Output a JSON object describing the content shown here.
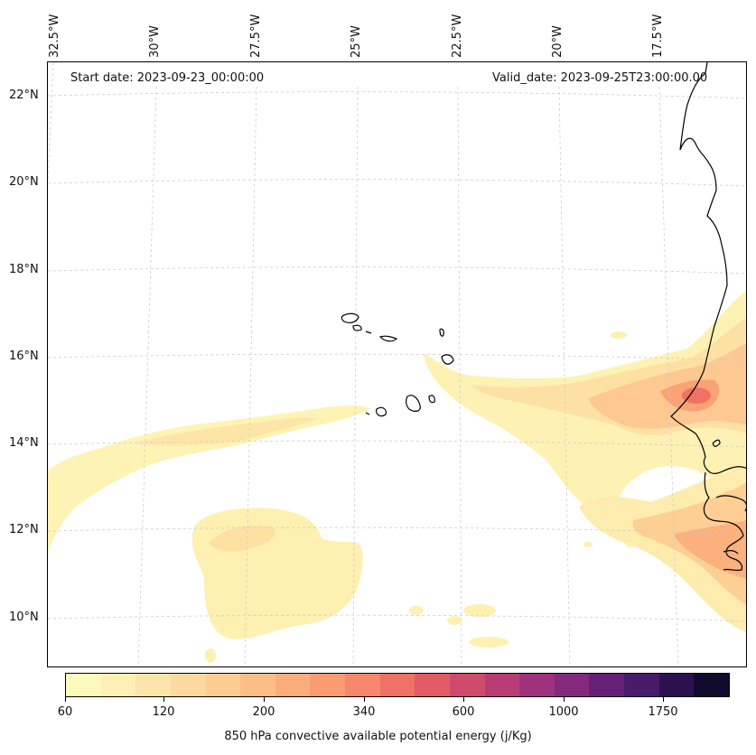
{
  "map": {
    "start_date": "Start date: 2023-09-23_00:00:00",
    "valid_date": "Valid_date: 2023-09-25T23:00:00.00",
    "longitude_labels": [
      "32.5°W",
      "30°W",
      "27.5°W",
      "25°W",
      "22.5°W",
      "20°W",
      "17.5°W"
    ],
    "latitude_labels": [
      "22°N",
      "20°N",
      "18°N",
      "16°N",
      "14°N",
      "12°N",
      "10°N"
    ],
    "colors": {
      "coastline": "#000000",
      "gridline": "#cccccc",
      "background": "#ffffff"
    }
  },
  "colorbar": {
    "label": "850 hPa convective available potential energy (j/Kg)",
    "tick_labels": [
      "60",
      "120",
      "200",
      "340",
      "600",
      "1000",
      "1750"
    ],
    "colors": [
      "#fcf9bc",
      "#fcf0b4",
      "#fce5aa",
      "#fdd99f",
      "#fdcc92",
      "#fdbd86",
      "#fcad7c",
      "#fb9b72",
      "#f7876a",
      "#f07165",
      "#e35c65",
      "#d04a6c",
      "#b93d75",
      "#9f327c",
      "#842a7e",
      "#67207a",
      "#481a6b",
      "#2c1150",
      "#110b2d"
    ]
  }
}
